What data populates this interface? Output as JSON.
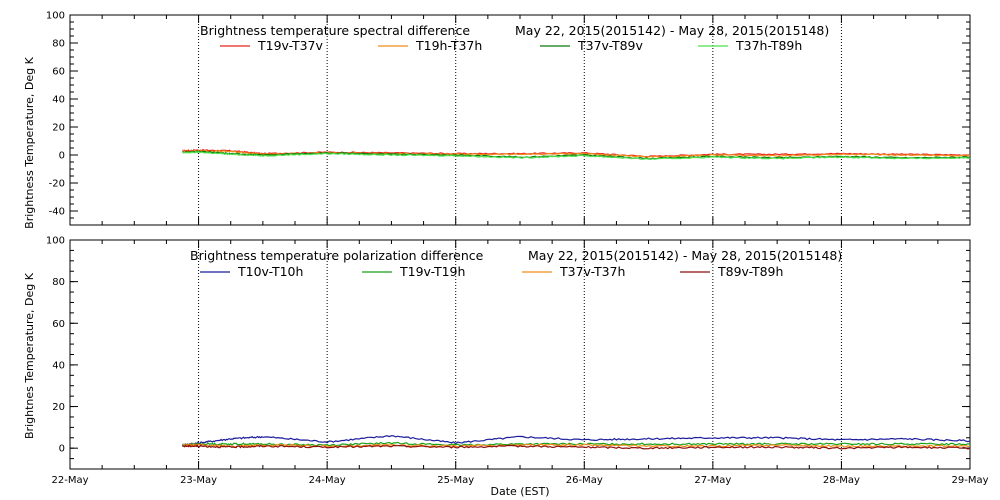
{
  "chart_data": [
    {
      "type": "line",
      "title": "Brightness temperature spectral difference",
      "date_range": "May 22, 2015(2015142) - May 28, 2015(2015148)",
      "xlabel": "",
      "ylabel": "Brightness Temperature, Deg K",
      "ylim": [
        -50,
        100
      ],
      "yticks": [
        -40,
        -20,
        0,
        20,
        40,
        60,
        80,
        100
      ],
      "xlim": [
        "2015-05-22",
        "2015-05-29"
      ],
      "xtick_labels": [],
      "grid": "vertical dotted lines at each day",
      "legend_placement": "top",
      "series": [
        {
          "name": "T19v-T37v",
          "color": "#e8261c",
          "x": [
            "2015-05-22T21:00",
            "2015-05-23T00:00",
            "2015-05-23T06:00",
            "2015-05-23T12:00",
            "2015-05-24T00:00",
            "2015-05-24T12:00",
            "2015-05-25T00:00",
            "2015-05-25T12:00",
            "2015-05-26T00:00",
            "2015-05-26T12:00",
            "2015-05-27T00:00",
            "2015-05-27T12:00",
            "2015-05-28T00:00",
            "2015-05-28T12:00",
            "2015-05-29T00:00"
          ],
          "values": [
            3,
            3.5,
            3,
            1,
            2,
            1.5,
            1,
            1,
            1.5,
            -1,
            0.5,
            0.5,
            1,
            0.5,
            0
          ]
        },
        {
          "name": "T19h-T37h",
          "color": "#f08c1c",
          "x": [
            "2015-05-22T21:00",
            "2015-05-23T00:00",
            "2015-05-23T06:00",
            "2015-05-23T12:00",
            "2015-05-24T00:00",
            "2015-05-24T12:00",
            "2015-05-25T00:00",
            "2015-05-25T12:00",
            "2015-05-26T00:00",
            "2015-05-26T12:00",
            "2015-05-27T00:00",
            "2015-05-27T12:00",
            "2015-05-28T00:00",
            "2015-05-28T12:00",
            "2015-05-29T00:00"
          ],
          "values": [
            2.5,
            3,
            2.5,
            0.5,
            1.5,
            1,
            0.5,
            0.5,
            1,
            -1.5,
            0,
            -0.5,
            0.5,
            0,
            -0.5
          ]
        },
        {
          "name": "T37v-T89v",
          "color": "#0a7a0a",
          "x": [
            "2015-05-22T21:00",
            "2015-05-23T00:00",
            "2015-05-23T06:00",
            "2015-05-23T12:00",
            "2015-05-24T00:00",
            "2015-05-24T12:00",
            "2015-05-25T00:00",
            "2015-05-25T12:00",
            "2015-05-26T00:00",
            "2015-05-26T12:00",
            "2015-05-27T00:00",
            "2015-05-27T12:00",
            "2015-05-28T00:00",
            "2015-05-28T12:00",
            "2015-05-29T00:00"
          ],
          "values": [
            2,
            2.5,
            1,
            0,
            1.5,
            0.5,
            0,
            -1.5,
            0,
            -2.5,
            -1,
            -2,
            -1,
            -2,
            -1.5
          ]
        },
        {
          "name": "T37h-T89h",
          "color": "#4ce04c",
          "x": [
            "2015-05-22T21:00",
            "2015-05-23T00:00",
            "2015-05-23T06:00",
            "2015-05-23T12:00",
            "2015-05-24T00:00",
            "2015-05-24T12:00",
            "2015-05-25T00:00",
            "2015-05-25T12:00",
            "2015-05-26T00:00",
            "2015-05-26T12:00",
            "2015-05-27T00:00",
            "2015-05-27T12:00",
            "2015-05-28T00:00",
            "2015-05-28T12:00",
            "2015-05-29T00:00"
          ],
          "values": [
            1.5,
            2,
            0.5,
            -0.5,
            1,
            0,
            -0.5,
            -2,
            -0.5,
            -3,
            -1.5,
            -2.5,
            -1.5,
            -2.5,
            -2
          ]
        }
      ]
    },
    {
      "type": "line",
      "title": "Brightness temperature polarization difference",
      "date_range": "May 22, 2015(2015142) - May 28, 2015(2015148)",
      "xlabel": "Date (EST)",
      "ylabel": "Brightnes Temperature, Deg K",
      "ylim": [
        -10,
        100
      ],
      "yticks": [
        0,
        20,
        40,
        60,
        80,
        100
      ],
      "xlim": [
        "2015-05-22",
        "2015-05-29"
      ],
      "xtick_labels": [
        "22-May",
        "23-May",
        "24-May",
        "25-May",
        "26-May",
        "27-May",
        "28-May",
        "29-May"
      ],
      "grid": "vertical dotted lines at each day",
      "legend_placement": "top",
      "series": [
        {
          "name": "T10v-T10h",
          "color": "#1c1c9c",
          "x": [
            "2015-05-22T21:00",
            "2015-05-23T00:00",
            "2015-05-23T06:00",
            "2015-05-23T12:00",
            "2015-05-24T00:00",
            "2015-05-24T12:00",
            "2015-05-25T00:00",
            "2015-05-25T12:00",
            "2015-05-26T00:00",
            "2015-05-26T12:00",
            "2015-05-27T00:00",
            "2015-05-27T12:00",
            "2015-05-28T00:00",
            "2015-05-28T12:00",
            "2015-05-29T00:00"
          ],
          "values": [
            1.5,
            2.5,
            4.5,
            5.5,
            3,
            6,
            2.5,
            5.5,
            4,
            4.5,
            5,
            5,
            4,
            4.5,
            3.5
          ]
        },
        {
          "name": "T19v-T19h",
          "color": "#1aa01a",
          "x": [
            "2015-05-22T21:00",
            "2015-05-23T00:00",
            "2015-05-23T06:00",
            "2015-05-23T12:00",
            "2015-05-24T00:00",
            "2015-05-24T12:00",
            "2015-05-25T00:00",
            "2015-05-25T12:00",
            "2015-05-26T00:00",
            "2015-05-26T12:00",
            "2015-05-27T00:00",
            "2015-05-27T12:00",
            "2015-05-28T00:00",
            "2015-05-28T12:00",
            "2015-05-29T00:00"
          ],
          "values": [
            1.5,
            2,
            2,
            2,
            1.5,
            2.5,
            1.5,
            2,
            2,
            2,
            2,
            2,
            2,
            2,
            2
          ]
        },
        {
          "name": "T37v-T37h",
          "color": "#f08c1c",
          "x": [
            "2015-05-22T21:00",
            "2015-05-23T00:00",
            "2015-05-23T06:00",
            "2015-05-23T12:00",
            "2015-05-24T00:00",
            "2015-05-24T12:00",
            "2015-05-25T00:00",
            "2015-05-25T12:00",
            "2015-05-26T00:00",
            "2015-05-26T12:00",
            "2015-05-27T00:00",
            "2015-05-27T12:00",
            "2015-05-28T00:00",
            "2015-05-28T12:00",
            "2015-05-29T00:00"
          ],
          "values": [
            1.5,
            1.5,
            1,
            1.5,
            1,
            1.5,
            1,
            1.5,
            1.5,
            1,
            1,
            1.5,
            1,
            1,
            1
          ]
        },
        {
          "name": "T89v-T89h",
          "color": "#8c1010",
          "x": [
            "2015-05-22T21:00",
            "2015-05-23T00:00",
            "2015-05-23T06:00",
            "2015-05-23T12:00",
            "2015-05-24T00:00",
            "2015-05-24T12:00",
            "2015-05-25T00:00",
            "2015-05-25T12:00",
            "2015-05-26T00:00",
            "2015-05-26T12:00",
            "2015-05-27T00:00",
            "2015-05-27T12:00",
            "2015-05-28T00:00",
            "2015-05-28T12:00",
            "2015-05-29T00:00"
          ],
          "values": [
            1,
            1,
            0.5,
            1,
            0.5,
            1,
            0.5,
            1,
            0.5,
            0,
            0.5,
            0.5,
            0,
            0.5,
            0
          ]
        }
      ]
    }
  ]
}
